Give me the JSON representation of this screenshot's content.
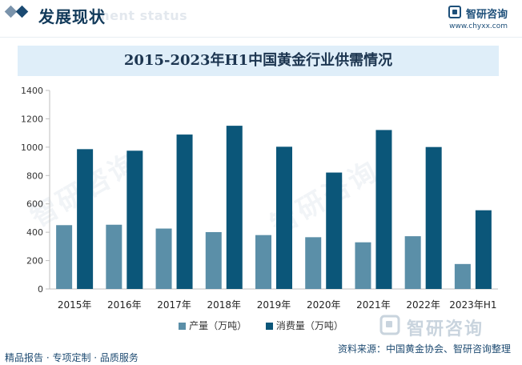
{
  "header": {
    "title": "发展现状",
    "subtitle": "ment status",
    "brand_name": "智研咨询",
    "brand_url": "www.chyxx.com"
  },
  "watermark": {
    "text": "智研咨询"
  },
  "footer": {
    "left": "精品报告 · 专项定制 · 品质服务",
    "source": "资料来源：中国黄金协会、智研咨询整理"
  },
  "chart_data": {
    "type": "bar",
    "title": "2015-2023年H1中国黄金行业供需情况",
    "categories": [
      "2015年",
      "2016年",
      "2017年",
      "2018年",
      "2019年",
      "2020年",
      "2021年",
      "2022年",
      "2023年H1"
    ],
    "series": [
      {
        "name": "产量（万吨）",
        "color": "#5b8fa8",
        "values": [
          450,
          453,
          426,
          401,
          380,
          365,
          329,
          372,
          176
        ]
      },
      {
        "name": "消费量（万吨）",
        "color": "#0b5679",
        "values": [
          986,
          975,
          1089,
          1151,
          1003,
          821,
          1121,
          1001,
          555
        ]
      }
    ],
    "ylim": [
      0,
      1400
    ],
    "yticks": [
      0,
      200,
      400,
      600,
      800,
      1000,
      1200,
      1400
    ],
    "grid": false,
    "legend_position": "bottom"
  }
}
